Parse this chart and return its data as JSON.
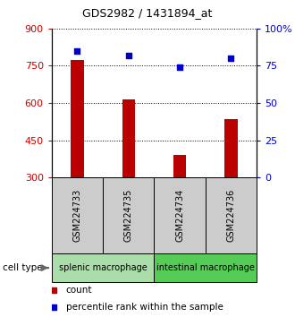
{
  "title": "GDS2982 / 1431894_at",
  "samples": [
    "GSM224733",
    "GSM224735",
    "GSM224734",
    "GSM224736"
  ],
  "counts": [
    775,
    615,
    390,
    535
  ],
  "percentiles": [
    85,
    82,
    74,
    80
  ],
  "ylim_left": [
    300,
    900
  ],
  "yticks_left": [
    300,
    450,
    600,
    750,
    900
  ],
  "ylim_right": [
    0,
    100
  ],
  "yticks_right": [
    0,
    25,
    50,
    75,
    100
  ],
  "bar_color": "#bb0000",
  "dot_color": "#0000cc",
  "groups": [
    {
      "label": "splenic macrophage",
      "samples": [
        0,
        1
      ],
      "color": "#aaddaa"
    },
    {
      "label": "intestinal macrophage",
      "samples": [
        2,
        3
      ],
      "color": "#55cc55"
    }
  ],
  "cell_type_label": "cell type",
  "legend_count_label": "count",
  "legend_pct_label": "percentile rank within the sample",
  "label_area_bg": "#cccccc",
  "ytick_left_color": "#cc0000",
  "ytick_right_color": "#0000cc",
  "bar_width": 0.25
}
